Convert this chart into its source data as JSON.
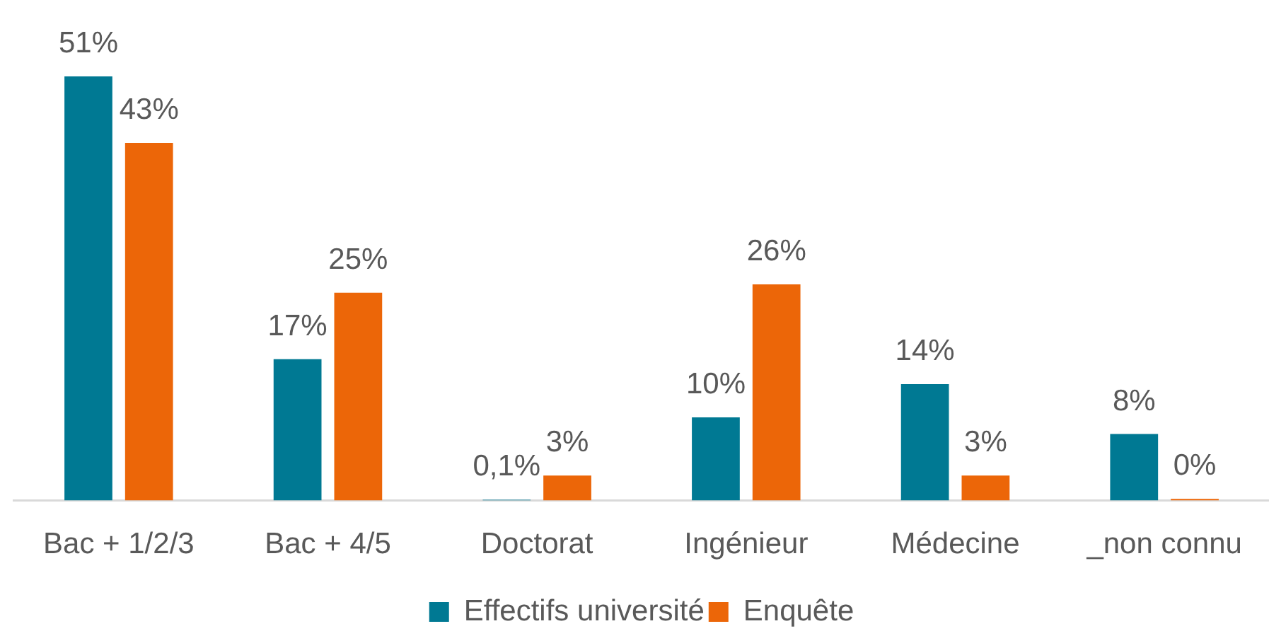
{
  "chart_data": {
    "type": "bar",
    "categories": [
      "Bac + 1/2/3",
      "Bac + 4/5",
      "Doctorat",
      "Ingénieur",
      "Médecine",
      "_non connu"
    ],
    "series": [
      {
        "name": "Effectifs université",
        "color": "#007993",
        "values": [
          51,
          17,
          0.1,
          10,
          14,
          8
        ],
        "value_labels": [
          "51%",
          "17%",
          "0,1%",
          "10%",
          "14%",
          "8%"
        ]
      },
      {
        "name": "Enquête",
        "color": "#ec6608",
        "values": [
          43,
          25,
          3,
          26,
          3,
          0.2
        ],
        "value_labels": [
          "43%",
          "25%",
          "3%",
          "26%",
          "3%",
          "0%"
        ]
      }
    ],
    "legend": "bottom",
    "tick_labels": "x"
  }
}
